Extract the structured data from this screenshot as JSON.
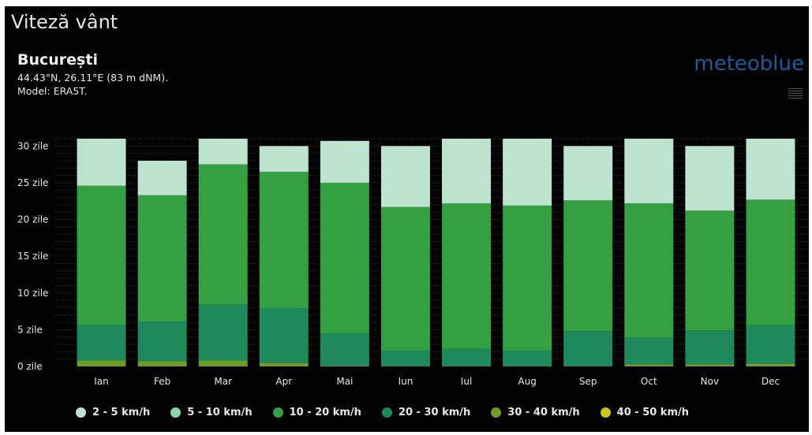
{
  "title": "Viteză vânt",
  "location": "București",
  "coordinates": "44.43°N, 26.11°E (83 m dNM).",
  "model": "Model: ERA5T.",
  "logo": "meteoblue",
  "colors": {
    "background": "#020202",
    "2-5": "#bde3cf",
    "5-10": "#88d4ab",
    "10-20": "#34a042",
    "20-30": "#1e8a5c",
    "30-40": "#6f9c23",
    "40-50": "#c8c61c",
    "logo": "#1f5a96"
  },
  "chart_data": {
    "type": "bar",
    "stacked": true,
    "categories": [
      "Ian",
      "Feb",
      "Mar",
      "Apr",
      "Mai",
      "Iun",
      "Iul",
      "Aug",
      "Sep",
      "Oct",
      "Nov",
      "Dec"
    ],
    "y_tick_labels": [
      "0 zile",
      "5 zile",
      "10 zile",
      "15 zile",
      "20 zile",
      "25 zile",
      "30 zile"
    ],
    "y_ticks": [
      0,
      5,
      10,
      15,
      20,
      25,
      30
    ],
    "ylim": [
      0,
      31
    ],
    "unit": "zile",
    "legend_position": "bottom",
    "series": [
      {
        "name": "2 - 5 km/h",
        "color": "#bde3cf",
        "values": [
          6.4,
          4.7,
          3.5,
          3.5,
          5.7,
          8.3,
          8.8,
          9.1,
          7.4,
          8.8,
          8.8,
          8.3
        ]
      },
      {
        "name": "5 - 10 km/h",
        "color": "#88d4ab",
        "values": [
          0.0,
          0.0,
          0.0,
          0.0,
          0.0,
          0.0,
          0.0,
          0.0,
          0.0,
          0.0,
          0.0,
          0.0
        ]
      },
      {
        "name": "10 - 20 km/h",
        "color": "#34a042",
        "values": [
          19.0,
          17.2,
          19.1,
          18.6,
          20.5,
          19.5,
          19.8,
          19.7,
          17.8,
          18.3,
          16.3,
          17.1
        ]
      },
      {
        "name": "20 - 30 km/h",
        "color": "#1e8a5c",
        "values": [
          4.8,
          5.4,
          7.6,
          7.4,
          4.4,
          2.2,
          2.4,
          2.2,
          4.8,
          3.6,
          4.6,
          5.2
        ]
      },
      {
        "name": "30 - 40 km/h",
        "color": "#6f9c23",
        "values": [
          0.8,
          0.7,
          0.8,
          0.5,
          0.1,
          0.0,
          0.0,
          0.0,
          0.0,
          0.3,
          0.3,
          0.4
        ]
      },
      {
        "name": "40 - 50 km/h",
        "color": "#c8c61c",
        "values": [
          0.0,
          0.0,
          0.0,
          0.0,
          0.0,
          0.0,
          0.0,
          0.0,
          0.0,
          0.0,
          0.0,
          0.0
        ]
      }
    ]
  }
}
